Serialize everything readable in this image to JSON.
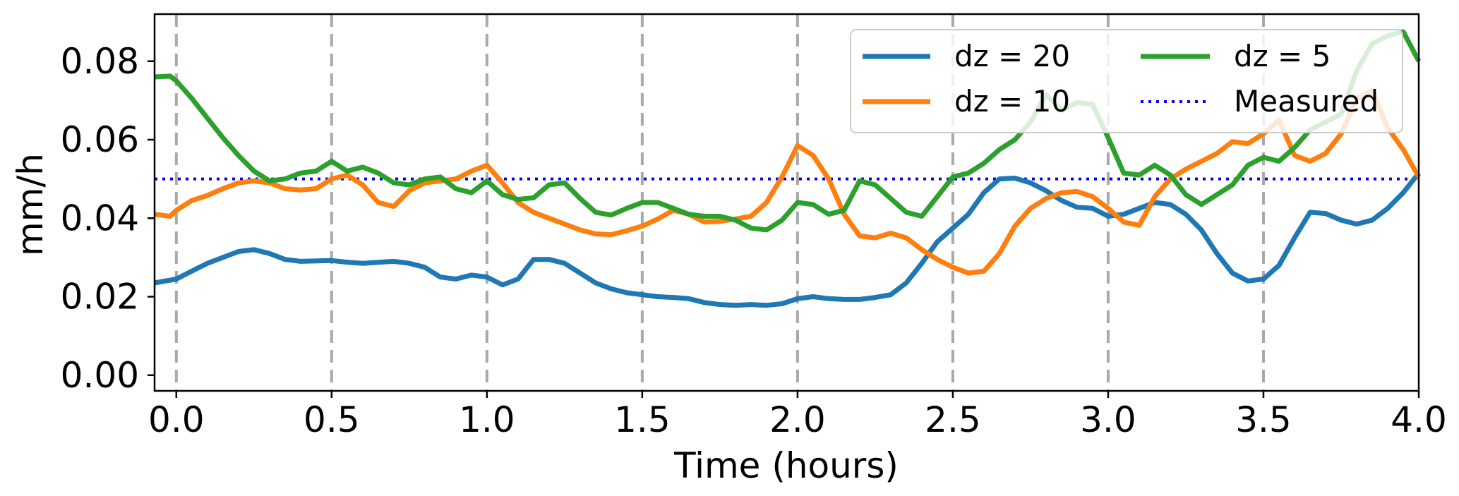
{
  "chart_data": {
    "type": "line",
    "xlabel": "Time (hours)",
    "ylabel": "mm/h",
    "xlim": [
      -0.07,
      4.0
    ],
    "ylim": [
      -0.004,
      0.092
    ],
    "xticks": [
      "0.0",
      "0.5",
      "1.0",
      "1.5",
      "2.0",
      "2.5",
      "3.0",
      "3.5",
      "4.0"
    ],
    "yticks": [
      "0.00",
      "0.02",
      "0.04",
      "0.06",
      "0.08"
    ],
    "vlines": [
      0.0,
      0.5,
      1.0,
      1.5,
      2.0,
      2.5,
      3.0,
      3.5
    ],
    "legend_position": "top-right",
    "colors": {
      "dz20": "#1f77b4",
      "dz10": "#ff7f0e",
      "dz5": "#2ca02c",
      "measured": "#0000ff",
      "vline": "#a9a9a9"
    },
    "measured": {
      "name": "Measured",
      "value": 0.05
    },
    "series": [
      {
        "name": "dz = 20",
        "color_key": "dz20",
        "x": [
          -0.07,
          0.0,
          0.05,
          0.1,
          0.15,
          0.2,
          0.25,
          0.3,
          0.35,
          0.4,
          0.5,
          0.55,
          0.6,
          0.7,
          0.75,
          0.8,
          0.85,
          0.9,
          0.95,
          1.0,
          1.05,
          1.1,
          1.15,
          1.2,
          1.25,
          1.3,
          1.35,
          1.4,
          1.45,
          1.5,
          1.55,
          1.6,
          1.65,
          1.7,
          1.75,
          1.8,
          1.85,
          1.9,
          1.95,
          2.0,
          2.05,
          2.1,
          2.15,
          2.2,
          2.25,
          2.3,
          2.35,
          2.4,
          2.45,
          2.5,
          2.55,
          2.6,
          2.65,
          2.7,
          2.75,
          2.8,
          2.85,
          2.9,
          2.95,
          3.0,
          3.05,
          3.1,
          3.15,
          3.2,
          3.25,
          3.3,
          3.35,
          3.4,
          3.45,
          3.5,
          3.55,
          3.6,
          3.65,
          3.7,
          3.75,
          3.8,
          3.85,
          3.9,
          3.95,
          4.0
        ],
        "values": [
          0.0235,
          0.0245,
          0.0265,
          0.0285,
          0.03,
          0.0315,
          0.032,
          0.031,
          0.0295,
          0.029,
          0.0292,
          0.0288,
          0.0285,
          0.029,
          0.0285,
          0.0275,
          0.025,
          0.0245,
          0.0255,
          0.025,
          0.023,
          0.0245,
          0.0295,
          0.0295,
          0.0285,
          0.026,
          0.0235,
          0.022,
          0.021,
          0.0205,
          0.02,
          0.0198,
          0.0195,
          0.0185,
          0.018,
          0.0178,
          0.018,
          0.0178,
          0.0182,
          0.0195,
          0.02,
          0.0195,
          0.0193,
          0.0193,
          0.0198,
          0.0205,
          0.0235,
          0.0285,
          0.034,
          0.0375,
          0.041,
          0.0465,
          0.05,
          0.0502,
          0.049,
          0.047,
          0.0445,
          0.0428,
          0.0425,
          0.0405,
          0.041,
          0.0425,
          0.044,
          0.0435,
          0.041,
          0.037,
          0.031,
          0.026,
          0.024,
          0.0245,
          0.028,
          0.035,
          0.0415,
          0.0412,
          0.0395,
          0.0385,
          0.0395,
          0.0425,
          0.0465,
          0.0515
        ]
      },
      {
        "name": "dz = 10",
        "color_key": "dz10",
        "x": [
          -0.07,
          -0.02,
          0.0,
          0.05,
          0.1,
          0.15,
          0.2,
          0.25,
          0.3,
          0.35,
          0.4,
          0.45,
          0.5,
          0.55,
          0.6,
          0.65,
          0.7,
          0.75,
          0.8,
          0.85,
          0.9,
          0.95,
          1.0,
          1.05,
          1.1,
          1.15,
          1.2,
          1.25,
          1.3,
          1.35,
          1.4,
          1.45,
          1.5,
          1.55,
          1.6,
          1.65,
          1.7,
          1.75,
          1.8,
          1.85,
          1.9,
          1.95,
          2.0,
          2.05,
          2.1,
          2.15,
          2.2,
          2.25,
          2.3,
          2.35,
          2.4,
          2.45,
          2.5,
          2.55,
          2.6,
          2.65,
          2.7,
          2.75,
          2.8,
          2.85,
          2.9,
          2.95,
          3.0,
          3.05,
          3.1,
          3.15,
          3.2,
          3.25,
          3.3,
          3.35,
          3.4,
          3.45,
          3.5,
          3.55,
          3.6,
          3.65,
          3.7,
          3.75,
          3.8,
          3.85,
          3.9,
          3.95,
          4.0
        ],
        "values": [
          0.041,
          0.0405,
          0.042,
          0.0445,
          0.0458,
          0.0475,
          0.049,
          0.0495,
          0.049,
          0.0475,
          0.0472,
          0.0475,
          0.05,
          0.051,
          0.0485,
          0.044,
          0.043,
          0.047,
          0.049,
          0.0495,
          0.05,
          0.052,
          0.0535,
          0.049,
          0.044,
          0.0415,
          0.04,
          0.0385,
          0.037,
          0.036,
          0.0358,
          0.0368,
          0.038,
          0.0398,
          0.042,
          0.041,
          0.039,
          0.0392,
          0.0398,
          0.0405,
          0.044,
          0.0505,
          0.0585,
          0.056,
          0.05,
          0.041,
          0.0355,
          0.035,
          0.0362,
          0.035,
          0.032,
          0.0295,
          0.0275,
          0.026,
          0.0265,
          0.031,
          0.038,
          0.0425,
          0.045,
          0.0465,
          0.0468,
          0.0455,
          0.0425,
          0.039,
          0.0382,
          0.0455,
          0.05,
          0.0525,
          0.0545,
          0.0565,
          0.0595,
          0.059,
          0.0615,
          0.065,
          0.056,
          0.0545,
          0.0565,
          0.0615,
          0.0705,
          0.0725,
          0.063,
          0.0575,
          0.0505
        ]
      },
      {
        "name": "dz = 5",
        "color_key": "dz5",
        "x": [
          -0.07,
          -0.02,
          0.0,
          0.05,
          0.1,
          0.15,
          0.2,
          0.25,
          0.3,
          0.35,
          0.4,
          0.45,
          0.5,
          0.55,
          0.6,
          0.65,
          0.7,
          0.75,
          0.8,
          0.85,
          0.9,
          0.95,
          1.0,
          1.05,
          1.1,
          1.15,
          1.2,
          1.25,
          1.3,
          1.35,
          1.4,
          1.45,
          1.5,
          1.55,
          1.6,
          1.65,
          1.7,
          1.75,
          1.8,
          1.85,
          1.9,
          1.95,
          2.0,
          2.05,
          2.1,
          2.15,
          2.2,
          2.25,
          2.3,
          2.35,
          2.4,
          2.45,
          2.5,
          2.55,
          2.6,
          2.65,
          2.7,
          2.75,
          2.8,
          2.85,
          2.9,
          2.95,
          3.0,
          3.05,
          3.1,
          3.15,
          3.2,
          3.25,
          3.3,
          3.35,
          3.4,
          3.45,
          3.5,
          3.55,
          3.6,
          3.65,
          3.7,
          3.75,
          3.8,
          3.85,
          3.9,
          3.95,
          4.0
        ],
        "values": [
          0.076,
          0.0762,
          0.075,
          0.0705,
          0.0655,
          0.0605,
          0.056,
          0.052,
          0.0495,
          0.05,
          0.0515,
          0.052,
          0.0545,
          0.052,
          0.053,
          0.0515,
          0.049,
          0.0485,
          0.05,
          0.0505,
          0.0475,
          0.0465,
          0.0495,
          0.046,
          0.0448,
          0.0452,
          0.0485,
          0.049,
          0.045,
          0.0415,
          0.0408,
          0.0425,
          0.044,
          0.044,
          0.0425,
          0.041,
          0.0405,
          0.0405,
          0.0395,
          0.0375,
          0.037,
          0.0395,
          0.044,
          0.0435,
          0.041,
          0.042,
          0.0495,
          0.0485,
          0.045,
          0.0415,
          0.0405,
          0.0455,
          0.0505,
          0.0515,
          0.054,
          0.0575,
          0.06,
          0.0645,
          0.0715,
          0.0675,
          0.0695,
          0.069,
          0.0605,
          0.0515,
          0.051,
          0.0535,
          0.051,
          0.046,
          0.0435,
          0.046,
          0.0485,
          0.0535,
          0.0555,
          0.0545,
          0.058,
          0.0625,
          0.0645,
          0.0665,
          0.0775,
          0.0845,
          0.0865,
          0.0875,
          0.08
        ]
      }
    ]
  }
}
